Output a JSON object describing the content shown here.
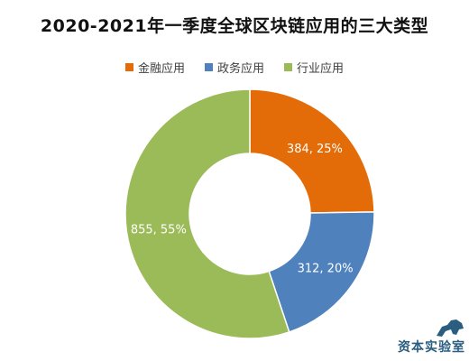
{
  "chart_data": {
    "type": "pie",
    "donut": true,
    "title": "2020-2021年一季度全球区块链应用的三大类型",
    "legend_position": "top",
    "slices": [
      {
        "name": "金融应用",
        "value": 384,
        "percent": 25,
        "label": "384, 25%",
        "color": "#E36C09"
      },
      {
        "name": "政务应用",
        "value": 312,
        "percent": 20,
        "label": "312, 20%",
        "color": "#4F81BD"
      },
      {
        "name": "行业应用",
        "value": 855,
        "percent": 55,
        "label": "855, 55%",
        "color": "#9BBB59"
      }
    ]
  },
  "watermark": {
    "text": "资本实验室"
  }
}
